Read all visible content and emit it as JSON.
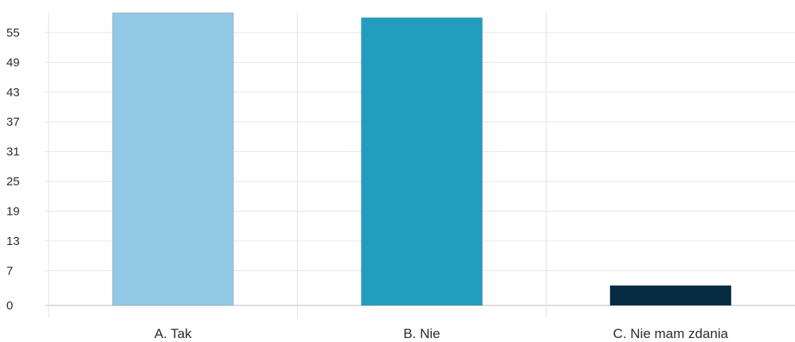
{
  "chart_data": {
    "type": "bar",
    "categories": [
      "A. Tak",
      "B. Nie",
      "C. Nie mam zdania"
    ],
    "values": [
      59,
      58,
      4
    ],
    "y_ticks": [
      0,
      7,
      13,
      19,
      25,
      31,
      37,
      43,
      49,
      55
    ],
    "ylim": [
      0,
      59
    ],
    "grid": true,
    "colors": [
      "#93c9e5",
      "#229dbd",
      "#062c44"
    ],
    "title": "",
    "xlabel": "",
    "ylabel": ""
  }
}
